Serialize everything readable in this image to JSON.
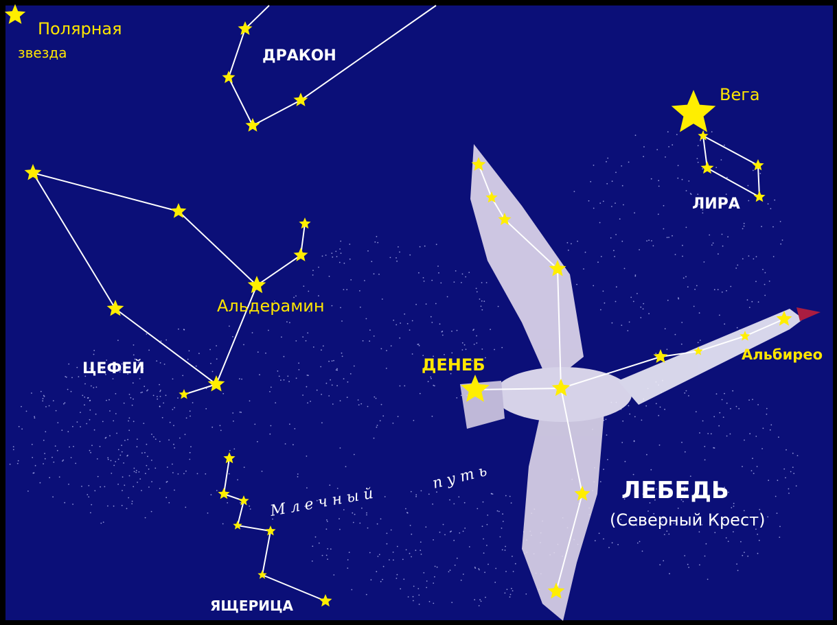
{
  "stars": {
    "polaris": [
      "Полярная",
      "звезда"
    ],
    "vega": "Вега",
    "alderamin": "Альдерамин",
    "deneb": "ДЕНЕБ",
    "albireo": "Альбирео"
  },
  "constellations": {
    "draco": "ДРАКОН",
    "lyra": "ЛИРА",
    "cepheus": "ЦЕФЕЙ",
    "lacerta": "ЯЩЕРИЦА",
    "cygnus": "ЛЕБЕДЬ",
    "cygnus_alt": "(Северный Крест)"
  },
  "milky_way": [
    "Млечный",
    "путь"
  ]
}
